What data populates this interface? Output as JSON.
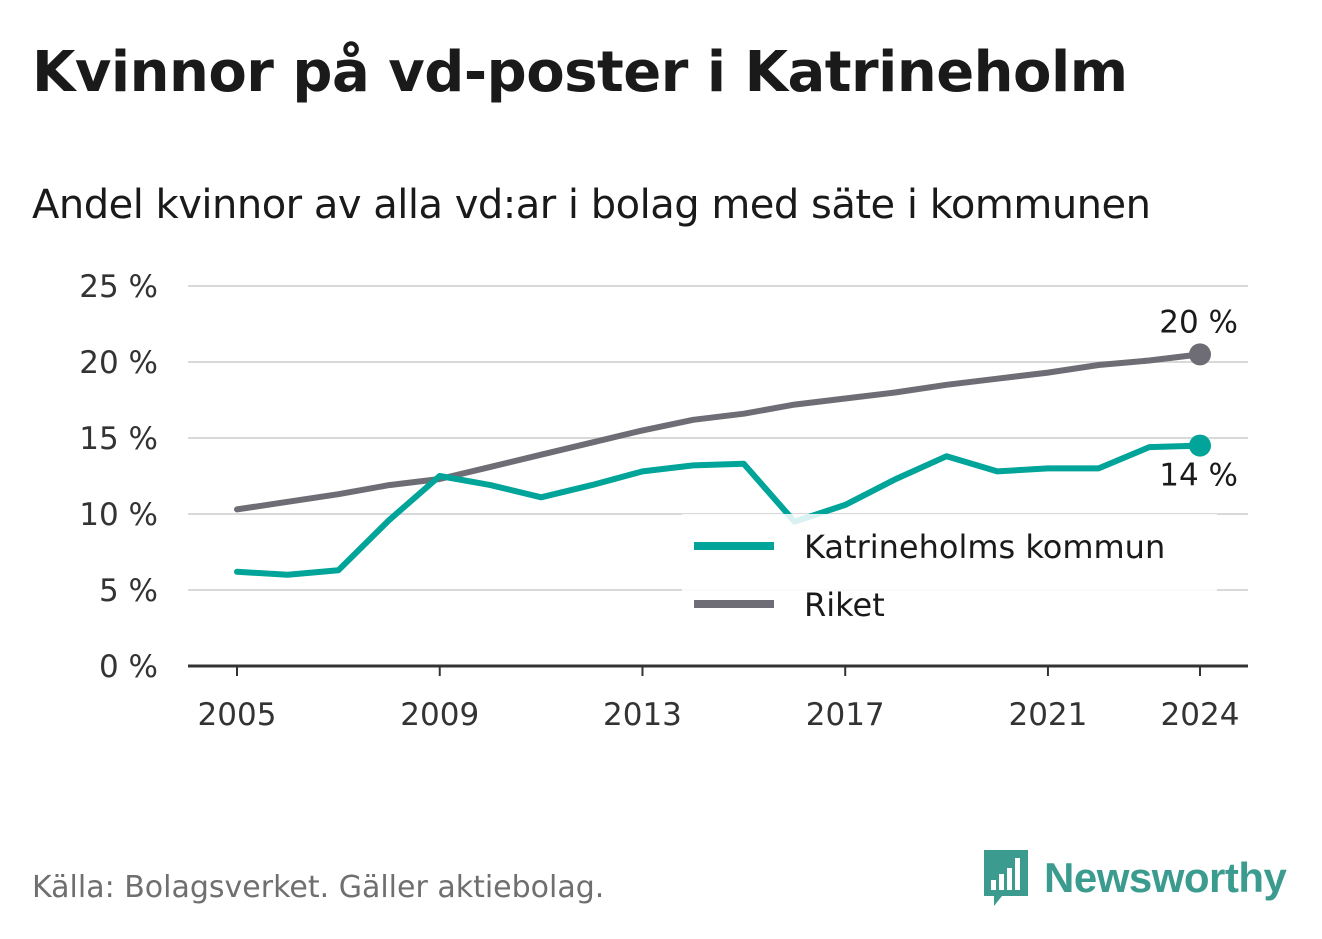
{
  "title": "Kvinnor på vd-poster i Katrineholm",
  "subtitle": "Andel kvinnor av alla vd:ar i bolag med säte i kommunen",
  "source": "Källa: Bolagsverket. Gäller aktiebolag.",
  "brand": {
    "name": "Newsworthy",
    "logo_icon": "newsworthy-bar-chart-icon"
  },
  "colors": {
    "kommun": "#00a499",
    "riket": "#6e6d75",
    "grid": "#d9d9d9",
    "axis": "#333333"
  },
  "chart_data": {
    "type": "line",
    "x": [
      2005,
      2006,
      2007,
      2008,
      2009,
      2010,
      2011,
      2012,
      2013,
      2014,
      2015,
      2016,
      2017,
      2018,
      2019,
      2020,
      2021,
      2022,
      2023,
      2024
    ],
    "x_tick_labels": [
      "2005",
      "2009",
      "2013",
      "2017",
      "2021",
      "2024"
    ],
    "x_ticks": [
      2005,
      2009,
      2013,
      2017,
      2021,
      2024
    ],
    "y_tick_labels": [
      "0 %",
      "5 %",
      "10 %",
      "15 %",
      "20 %",
      "25 %"
    ],
    "y_ticks": [
      0,
      5,
      10,
      15,
      20,
      25
    ],
    "ylim": [
      0,
      25
    ],
    "grid": true,
    "legend_position": "bottom-right",
    "series": [
      {
        "name": "Katrineholms kommun",
        "color": "#00a499",
        "values": [
          6.2,
          6.0,
          6.3,
          9.6,
          12.5,
          11.9,
          11.1,
          11.9,
          12.8,
          13.2,
          13.3,
          9.5,
          10.6,
          12.3,
          13.8,
          12.8,
          13.0,
          13.0,
          14.4,
          14.5
        ],
        "end_label": "14 %"
      },
      {
        "name": "Riket",
        "color": "#6e6d75",
        "values": [
          10.3,
          10.8,
          11.3,
          11.9,
          12.3,
          13.1,
          13.9,
          14.7,
          15.5,
          16.2,
          16.6,
          17.2,
          17.6,
          18.0,
          18.5,
          18.9,
          19.3,
          19.8,
          20.1,
          20.5
        ],
        "end_label": "20 %"
      }
    ]
  }
}
